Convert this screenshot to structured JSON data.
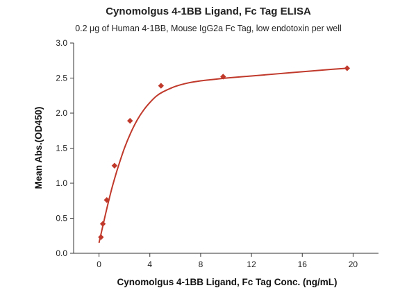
{
  "chart_data": {
    "type": "scatter",
    "title": "Cynomolgus 4-1BB Ligand, Fc Tag ELISA",
    "subtitle": "0.2 μg of Human 4-1BB, Mouse IgG2a Fc Tag, low endotoxin per well",
    "xlabel": "Cynomolgus 4-1BB Ligand, Fc Tag Conc. (ng/mL)",
    "ylabel": "Mean Abs.(OD450)",
    "xlim": [
      -2,
      22
    ],
    "ylim": [
      0.0,
      3.0
    ],
    "x_ticks": [
      0,
      4,
      8,
      12,
      16,
      20
    ],
    "x_tick_labels": [
      "0",
      "4",
      "8",
      "12",
      "16",
      "20"
    ],
    "y_ticks": [
      0.0,
      0.5,
      1.0,
      1.5,
      2.0,
      2.5,
      3.0
    ],
    "y_tick_labels": [
      "0.0",
      "0.5",
      "1.0",
      "1.5",
      "2.0",
      "2.5",
      "3.0"
    ],
    "grid": false,
    "colors": {
      "series": "#c0392b",
      "axis": "#333333"
    },
    "series": [
      {
        "marker": "diamond",
        "x": [
          0.15,
          0.3,
          0.61,
          1.22,
          2.44,
          4.88,
          9.77,
          19.53
        ],
        "y": [
          0.23,
          0.42,
          0.76,
          1.25,
          1.89,
          2.39,
          2.52,
          2.64
        ]
      }
    ],
    "fit_curve": {
      "x": [
        0.0,
        0.15,
        0.3,
        0.5,
        0.75,
        1.0,
        1.25,
        1.5,
        2.0,
        2.5,
        3.0,
        3.5,
        4.0,
        4.5,
        5.0,
        6.0,
        7.0,
        8.0,
        9.0,
        10.0,
        12.0,
        14.0,
        16.0,
        18.0,
        19.53
      ],
      "y": [
        0.15,
        0.27,
        0.39,
        0.55,
        0.74,
        0.92,
        1.08,
        1.23,
        1.5,
        1.72,
        1.9,
        2.04,
        2.15,
        2.24,
        2.3,
        2.38,
        2.43,
        2.46,
        2.48,
        2.5,
        2.53,
        2.56,
        2.59,
        2.62,
        2.64
      ]
    }
  }
}
